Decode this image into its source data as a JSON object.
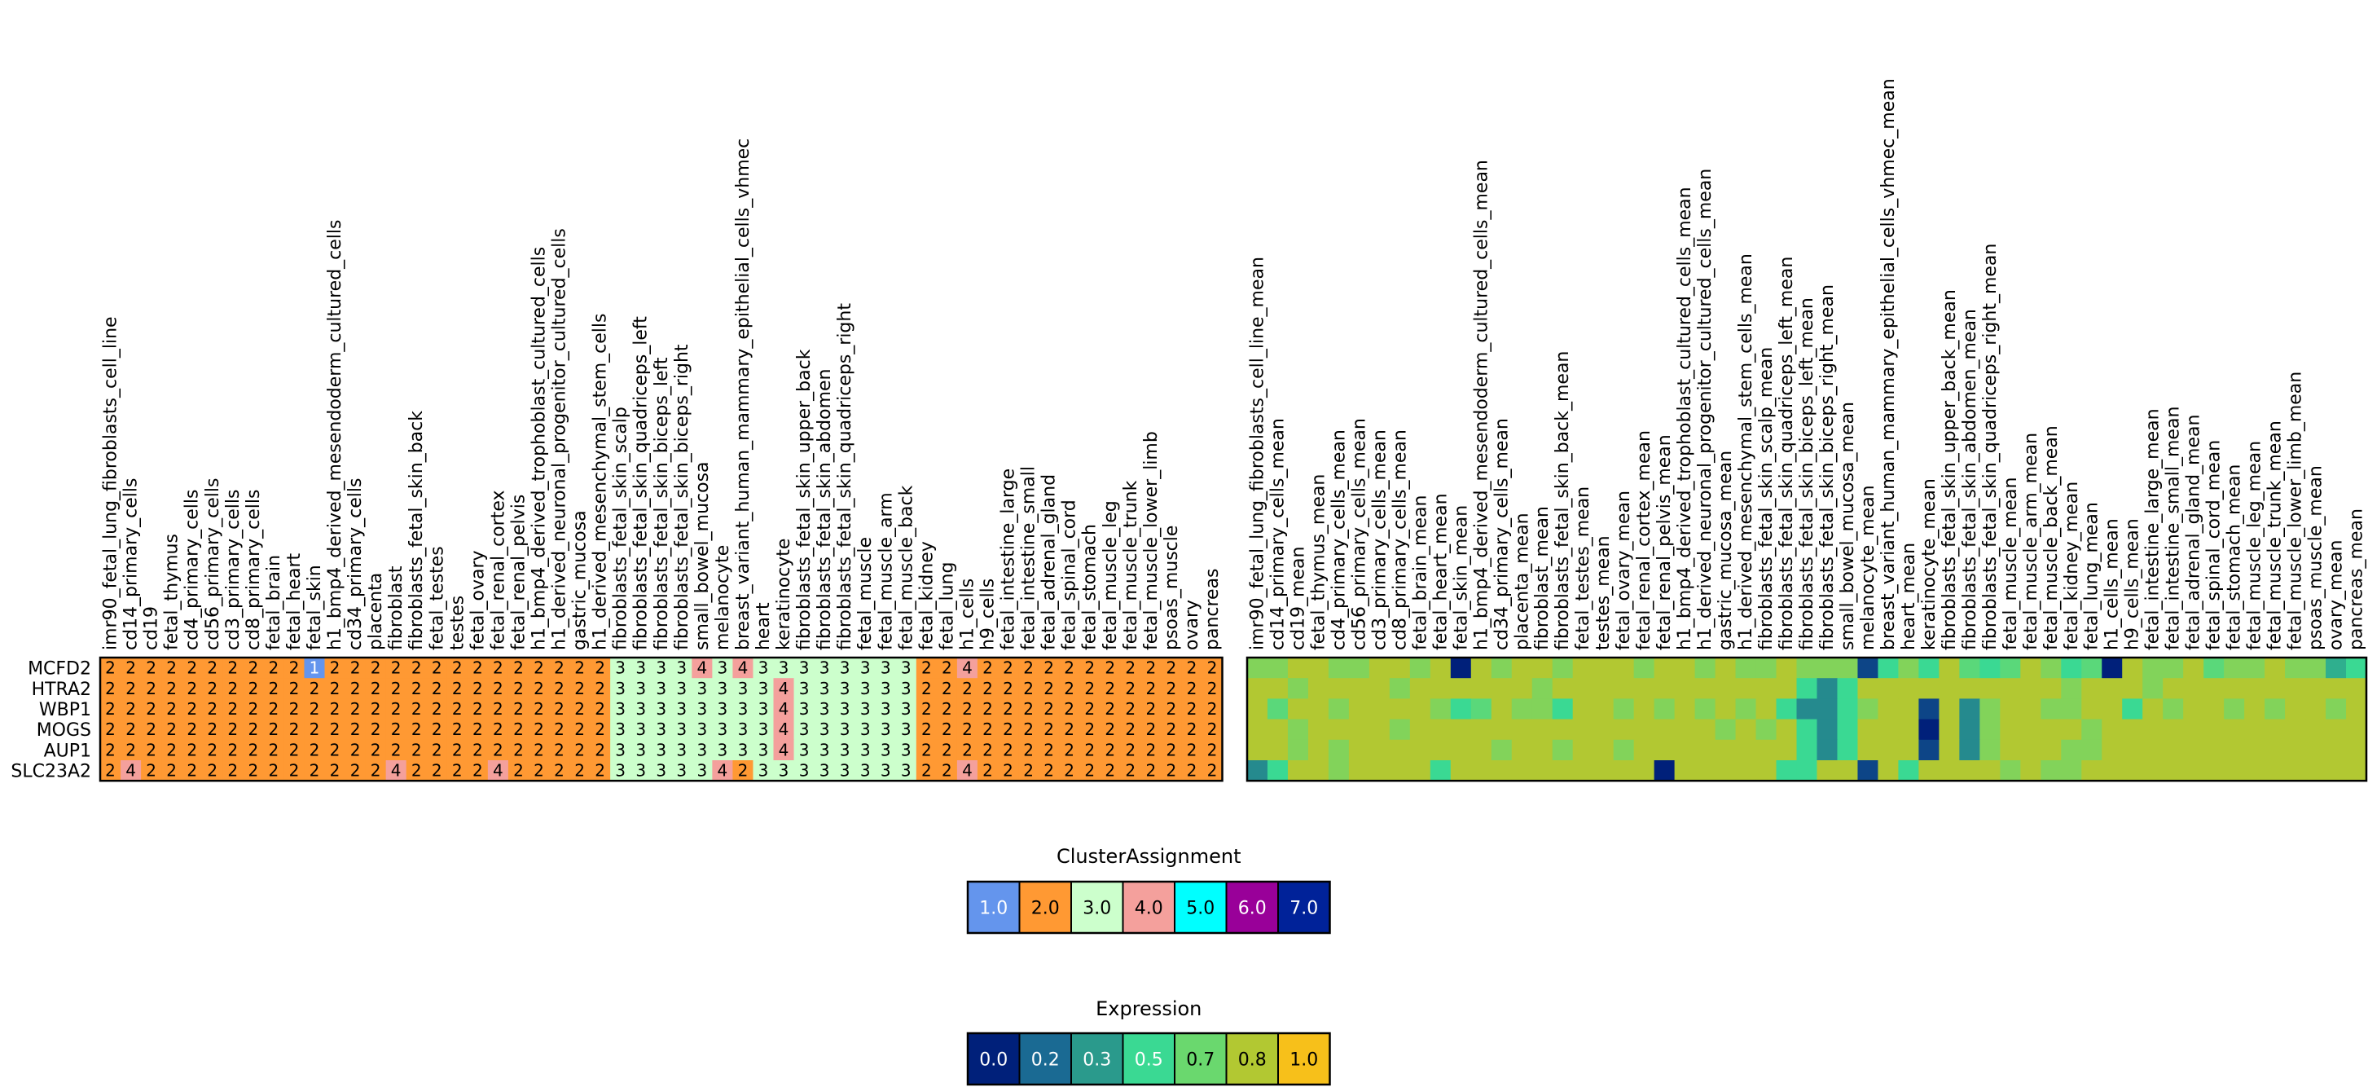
{
  "chart_data": [
    {
      "type": "heatmap",
      "title": "ClusterAssignment",
      "rows": [
        "MCFD2",
        "HTRA2",
        "WBP1",
        "MOGS",
        "AUP1",
        "SLC23A2"
      ],
      "columns": [
        "imr90_fetal_lung_fibroblasts_cell_line",
        "cd14_primary_cells",
        "cd19",
        "fetal_thymus",
        "cd4_primary_cells",
        "cd56_primary_cells",
        "cd3_primary_cells",
        "cd8_primary_cells",
        "fetal_brain",
        "fetal_heart",
        "fetal_skin",
        "h1_bmp4_derived_mesendoderm_cultured_cells",
        "cd34_primary_cells",
        "placenta",
        "fibroblast",
        "fibroblasts_fetal_skin_back",
        "fetal_testes",
        "testes",
        "fetal_ovary",
        "fetal_renal_cortex",
        "fetal_renal_pelvis",
        "h1_bmp4_derived_trophoblast_cultured_cells",
        "h1_derived_neuronal_progenitor_cultured_cells",
        "gastric_mucosa",
        "h1_derived_mesenchymal_stem_cells",
        "fibroblasts_fetal_skin_scalp",
        "fibroblasts_fetal_skin_quadriceps_left",
        "fibroblasts_fetal_skin_biceps_left",
        "fibroblasts_fetal_skin_biceps_right",
        "small_bowel_mucosa",
        "melanocyte",
        "breast_variant_human_mammary_epithelial_cells_vhmec",
        "heart",
        "keratinocyte",
        "fibroblasts_fetal_skin_upper_back",
        "fibroblasts_fetal_skin_abdomen",
        "fibroblasts_fetal_skin_quadriceps_right",
        "fetal_muscle",
        "fetal_muscle_arm",
        "fetal_muscle_back",
        "fetal_kidney",
        "fetal_lung",
        "h1_cells",
        "h9_cells",
        "fetal_intestine_large",
        "fetal_intestine_small",
        "fetal_adrenal_gland",
        "fetal_spinal_cord",
        "fetal_stomach",
        "fetal_muscle_leg",
        "fetal_muscle_trunk",
        "fetal_muscle_lower_limb",
        "psoas_muscle",
        "ovary",
        "pancreas"
      ],
      "values": [
        [
          2,
          2,
          2,
          2,
          2,
          2,
          2,
          2,
          2,
          2,
          1,
          2,
          2,
          2,
          2,
          2,
          2,
          2,
          2,
          2,
          2,
          2,
          2,
          2,
          2,
          3,
          3,
          3,
          3,
          4,
          3,
          4,
          3,
          3,
          3,
          3,
          3,
          3,
          3,
          3,
          2,
          2,
          4,
          2,
          2,
          2,
          2,
          2,
          2,
          2,
          2,
          2,
          2,
          2,
          2
        ],
        [
          2,
          2,
          2,
          2,
          2,
          2,
          2,
          2,
          2,
          2,
          2,
          2,
          2,
          2,
          2,
          2,
          2,
          2,
          2,
          2,
          2,
          2,
          2,
          2,
          2,
          3,
          3,
          3,
          3,
          3,
          3,
          3,
          3,
          4,
          3,
          3,
          3,
          3,
          3,
          3,
          2,
          2,
          2,
          2,
          2,
          2,
          2,
          2,
          2,
          2,
          2,
          2,
          2,
          2,
          2
        ],
        [
          2,
          2,
          2,
          2,
          2,
          2,
          2,
          2,
          2,
          2,
          2,
          2,
          2,
          2,
          2,
          2,
          2,
          2,
          2,
          2,
          2,
          2,
          2,
          2,
          2,
          3,
          3,
          3,
          3,
          3,
          3,
          3,
          3,
          4,
          3,
          3,
          3,
          3,
          3,
          3,
          2,
          2,
          2,
          2,
          2,
          2,
          2,
          2,
          2,
          2,
          2,
          2,
          2,
          2,
          2
        ],
        [
          2,
          2,
          2,
          2,
          2,
          2,
          2,
          2,
          2,
          2,
          2,
          2,
          2,
          2,
          2,
          2,
          2,
          2,
          2,
          2,
          2,
          2,
          2,
          2,
          2,
          3,
          3,
          3,
          3,
          3,
          3,
          3,
          3,
          4,
          3,
          3,
          3,
          3,
          3,
          3,
          2,
          2,
          2,
          2,
          2,
          2,
          2,
          2,
          2,
          2,
          2,
          2,
          2,
          2,
          2
        ],
        [
          2,
          2,
          2,
          2,
          2,
          2,
          2,
          2,
          2,
          2,
          2,
          2,
          2,
          2,
          2,
          2,
          2,
          2,
          2,
          2,
          2,
          2,
          2,
          2,
          2,
          3,
          3,
          3,
          3,
          3,
          3,
          3,
          3,
          4,
          3,
          3,
          3,
          3,
          3,
          3,
          2,
          2,
          2,
          2,
          2,
          2,
          2,
          2,
          2,
          2,
          2,
          2,
          2,
          2,
          2
        ],
        [
          2,
          4,
          2,
          2,
          2,
          2,
          2,
          2,
          2,
          2,
          2,
          2,
          2,
          2,
          4,
          2,
          2,
          2,
          2,
          4,
          2,
          2,
          2,
          2,
          2,
          3,
          3,
          3,
          3,
          3,
          4,
          2,
          3,
          3,
          3,
          3,
          3,
          3,
          3,
          3,
          2,
          2,
          4,
          2,
          2,
          2,
          2,
          2,
          2,
          2,
          2,
          2,
          2,
          2,
          2
        ]
      ],
      "legend": {
        "title": "ClusterAssignment",
        "labels": [
          "1.0",
          "2.0",
          "3.0",
          "4.0",
          "5.0",
          "6.0",
          "7.0"
        ],
        "colors": [
          "#6495ed",
          "#ff9933",
          "#ccffcc",
          "#f4a09c",
          "#00ffff",
          "#990099",
          "#002299"
        ],
        "placement": "bottom-center"
      }
    },
    {
      "type": "heatmap",
      "title": "Expression",
      "rows": [
        "MCFD2",
        "HTRA2",
        "WBP1",
        "MOGS",
        "AUP1",
        "SLC23A2"
      ],
      "columns": [
        "imr90_fetal_lung_fibroblasts_cell_line_mean",
        "cd14_primary_cells_mean",
        "cd19_mean",
        "fetal_thymus_mean",
        "cd4_primary_cells_mean",
        "cd56_primary_cells_mean",
        "cd3_primary_cells_mean",
        "cd8_primary_cells_mean",
        "fetal_brain_mean",
        "fetal_heart_mean",
        "fetal_skin_mean",
        "h1_bmp4_derived_mesendoderm_cultured_cells_mean",
        "cd34_primary_cells_mean",
        "placenta_mean",
        "fibroblast_mean",
        "fibroblasts_fetal_skin_back_mean",
        "fetal_testes_mean",
        "testes_mean",
        "fetal_ovary_mean",
        "fetal_renal_cortex_mean",
        "fetal_renal_pelvis_mean",
        "h1_bmp4_derived_trophoblast_cultured_cells_mean",
        "h1_derived_neuronal_progenitor_cultured_cells_mean",
        "gastric_mucosa_mean",
        "h1_derived_mesenchymal_stem_cells_mean",
        "fibroblasts_fetal_skin_scalp_mean",
        "fibroblasts_fetal_skin_quadriceps_left_mean",
        "fibroblasts_fetal_skin_biceps_left_mean",
        "fibroblasts_fetal_skin_biceps_right_mean",
        "small_bowel_mucosa_mean",
        "melanocyte_mean",
        "breast_variant_human_mammary_epithelial_cells_vhmec_mean",
        "heart_mean",
        "keratinocyte_mean",
        "fibroblasts_fetal_skin_upper_back_mean",
        "fibroblasts_fetal_skin_abdomen_mean",
        "fibroblasts_fetal_skin_quadriceps_right_mean",
        "fetal_muscle_mean",
        "fetal_muscle_arm_mean",
        "fetal_muscle_back_mean",
        "fetal_kidney_mean",
        "fetal_lung_mean",
        "h1_cells_mean",
        "h9_cells_mean",
        "fetal_intestine_large_mean",
        "fetal_intestine_small_mean",
        "fetal_adrenal_gland_mean",
        "fetal_spinal_cord_mean",
        "fetal_stomach_mean",
        "fetal_muscle_leg_mean",
        "fetal_muscle_trunk_mean",
        "fetal_muscle_lower_limb_mean",
        "psoas_muscle_mean",
        "ovary_mean",
        "pancreas_mean"
      ],
      "values": [
        [
          0.7,
          0.7,
          0.8,
          0.8,
          0.7,
          0.7,
          0.8,
          0.8,
          0.7,
          0.8,
          0.0,
          0.8,
          0.7,
          0.8,
          0.8,
          0.7,
          0.8,
          0.8,
          0.8,
          0.7,
          0.8,
          0.8,
          0.7,
          0.8,
          0.7,
          0.7,
          0.8,
          0.7,
          0.7,
          0.7,
          0.1,
          0.5,
          0.7,
          0.5,
          0.8,
          0.6,
          0.5,
          0.6,
          0.8,
          0.7,
          0.5,
          0.6,
          0.0,
          0.8,
          0.7,
          0.7,
          0.8,
          0.6,
          0.7,
          0.7,
          0.8,
          0.7,
          0.7,
          0.4,
          0.5
        ],
        [
          0.8,
          0.8,
          0.7,
          0.8,
          0.8,
          0.8,
          0.8,
          0.7,
          0.8,
          0.8,
          0.8,
          0.8,
          0.8,
          0.8,
          0.7,
          0.8,
          0.8,
          0.8,
          0.8,
          0.8,
          0.8,
          0.8,
          0.8,
          0.8,
          0.8,
          0.8,
          0.8,
          0.5,
          0.3,
          0.5,
          0.8,
          0.8,
          0.8,
          0.8,
          0.8,
          0.8,
          0.8,
          0.8,
          0.8,
          0.8,
          0.7,
          0.8,
          0.8,
          0.8,
          0.7,
          0.8,
          0.8,
          0.8,
          0.8,
          0.8,
          0.8,
          0.8,
          0.8,
          0.8,
          0.8
        ],
        [
          0.8,
          0.6,
          0.8,
          0.8,
          0.7,
          0.8,
          0.8,
          0.8,
          0.8,
          0.7,
          0.5,
          0.6,
          0.8,
          0.7,
          0.7,
          0.5,
          0.8,
          0.8,
          0.7,
          0.8,
          0.7,
          0.8,
          0.7,
          0.8,
          0.7,
          0.8,
          0.5,
          0.3,
          0.3,
          0.5,
          0.7,
          0.8,
          0.8,
          0.1,
          0.8,
          0.3,
          0.7,
          0.8,
          0.8,
          0.7,
          0.7,
          0.8,
          0.8,
          0.5,
          0.8,
          0.7,
          0.8,
          0.8,
          0.7,
          0.8,
          0.7,
          0.8,
          0.8,
          0.7,
          0.8
        ],
        [
          0.8,
          0.8,
          0.7,
          0.8,
          0.8,
          0.8,
          0.8,
          0.7,
          0.8,
          0.8,
          0.8,
          0.8,
          0.8,
          0.8,
          0.8,
          0.8,
          0.8,
          0.8,
          0.8,
          0.8,
          0.8,
          0.8,
          0.8,
          0.7,
          0.8,
          0.7,
          0.8,
          0.5,
          0.3,
          0.5,
          0.8,
          0.8,
          0.8,
          0.0,
          0.8,
          0.3,
          0.7,
          0.8,
          0.8,
          0.8,
          0.8,
          0.7,
          0.8,
          0.8,
          0.8,
          0.8,
          0.8,
          0.8,
          0.8,
          0.8,
          0.8,
          0.8,
          0.8,
          0.8,
          0.8
        ],
        [
          0.8,
          0.8,
          0.7,
          0.8,
          0.7,
          0.8,
          0.8,
          0.8,
          0.8,
          0.8,
          0.8,
          0.8,
          0.7,
          0.8,
          0.8,
          0.7,
          0.8,
          0.8,
          0.7,
          0.8,
          0.8,
          0.8,
          0.8,
          0.8,
          0.8,
          0.8,
          0.8,
          0.5,
          0.3,
          0.5,
          0.8,
          0.8,
          0.8,
          0.1,
          0.8,
          0.3,
          0.7,
          0.8,
          0.8,
          0.8,
          0.7,
          0.7,
          0.8,
          0.8,
          0.8,
          0.8,
          0.8,
          0.8,
          0.8,
          0.8,
          0.8,
          0.8,
          0.8,
          0.8,
          0.8
        ],
        [
          0.3,
          0.5,
          0.8,
          0.8,
          0.7,
          0.8,
          0.8,
          0.8,
          0.8,
          0.5,
          0.8,
          0.8,
          0.8,
          0.8,
          0.8,
          0.8,
          0.8,
          0.8,
          0.8,
          0.8,
          0.0,
          0.8,
          0.8,
          0.8,
          0.8,
          0.8,
          0.5,
          0.5,
          0.8,
          0.8,
          0.1,
          0.8,
          0.5,
          0.8,
          0.8,
          0.8,
          0.8,
          0.7,
          0.8,
          0.7,
          0.7,
          0.8,
          0.8,
          0.8,
          0.8,
          0.8,
          0.8,
          0.8,
          0.8,
          0.8,
          0.8,
          0.8,
          0.8,
          0.8,
          0.8
        ]
      ],
      "legend": {
        "title": "Expression",
        "labels": [
          "0.0",
          "0.2",
          "0.3",
          "0.5",
          "0.7",
          "0.8",
          "1.0"
        ],
        "colors": [
          "#00207a",
          "#1a6a93",
          "#2a9a8c",
          "#3ad993",
          "#6ad86e",
          "#b2c832",
          "#f7c01a"
        ],
        "placement": "bottom-center"
      }
    }
  ]
}
